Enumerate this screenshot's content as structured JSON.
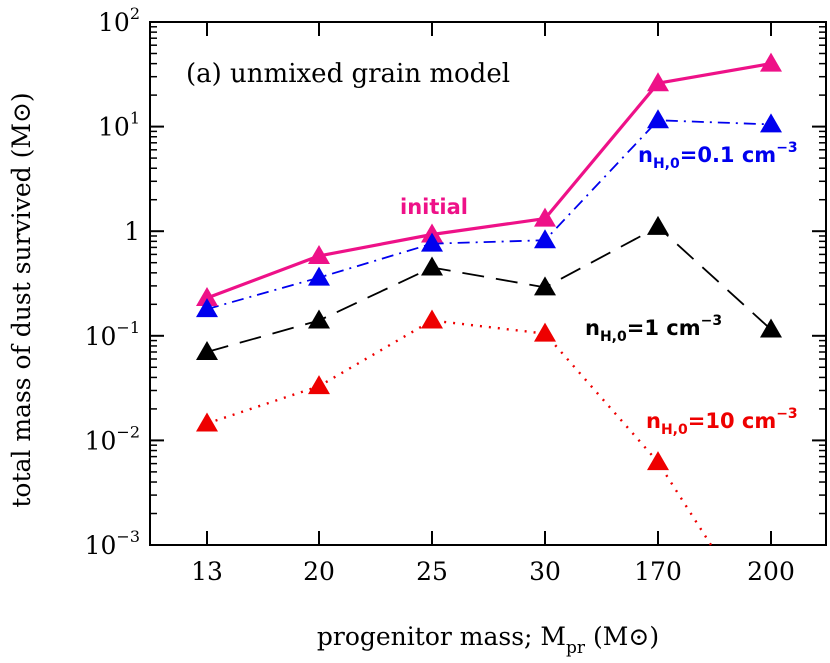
{
  "chart_data": {
    "type": "line",
    "panel_label": "(a) unmixed grain model",
    "xlabel": "progenitor mass; M",
    "xlabel_sub": "pr",
    "xlabel_unit": "(M",
    "xlabel_unit_sym": "⊙",
    "xlabel_close": ")",
    "ylabel": "total mass of dust survived (M⊙)",
    "yscale": "log",
    "ylim": [
      0.001,
      100
    ],
    "grid": false,
    "legend": "none",
    "categories": [
      "13",
      "20",
      "25",
      "30",
      "170",
      "200"
    ],
    "yticks": [
      {
        "v": 0.001,
        "base": "10",
        "exp": "−3"
      },
      {
        "v": 0.01,
        "base": "10",
        "exp": "−2"
      },
      {
        "v": 0.1,
        "base": "10",
        "exp": "−1"
      },
      {
        "v": 1,
        "base": "1",
        "exp": ""
      },
      {
        "v": 10,
        "base": "10",
        "exp": "1"
      },
      {
        "v": 100,
        "base": "10",
        "exp": "2"
      }
    ],
    "series": [
      {
        "key": "initial",
        "color": "#ee1188",
        "dash": "",
        "width": 3.2,
        "values": [
          0.23,
          0.58,
          0.93,
          1.32,
          26,
          40
        ]
      },
      {
        "key": "n01",
        "color": "#0000ee",
        "dash": "12,6,2,6",
        "width": 1.8,
        "values": [
          0.18,
          0.36,
          0.76,
          0.82,
          11.5,
          10.5
        ]
      },
      {
        "key": "n1",
        "color": "#000000",
        "dash": "22,12",
        "width": 1.8,
        "values": [
          0.07,
          0.14,
          0.45,
          0.29,
          1.1,
          0.115
        ]
      },
      {
        "key": "n10",
        "color": "#ee0000",
        "dash": "2,7",
        "width": 2.4,
        "values": [
          0.0145,
          0.033,
          0.14,
          0.105,
          0.0062,
          null
        ],
        "tail_to_bottom_at": 4.5
      }
    ],
    "annotations": [
      {
        "series": "initial",
        "text": "initial"
      },
      {
        "series": "n01",
        "pre": "n",
        "sub": "H,0",
        "post": "=0.1 cm",
        "exp": "−3"
      },
      {
        "series": "n1",
        "pre": "n",
        "sub": "H,0",
        "post": "=1 cm",
        "exp": "−3"
      },
      {
        "series": "n10",
        "pre": "n",
        "sub": "H,0",
        "post": "=10 cm",
        "exp": "−3"
      }
    ]
  }
}
